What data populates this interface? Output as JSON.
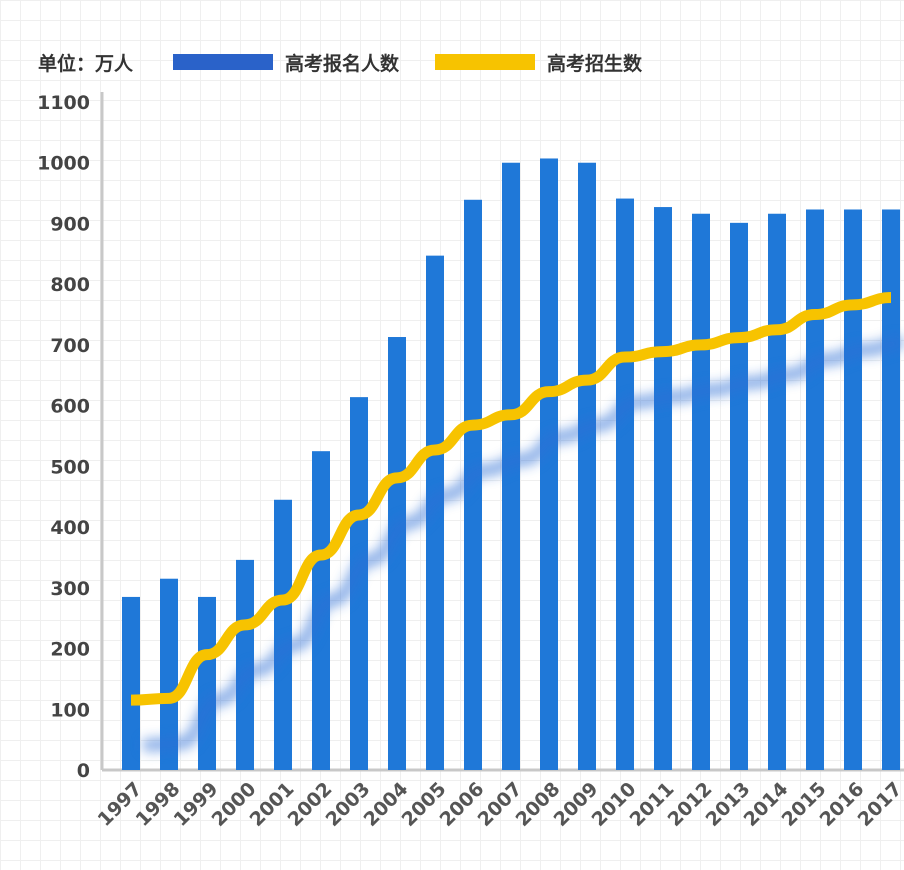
{
  "chart_data": {
    "type": "bar+line",
    "unit_label": "单位：万人",
    "categories": [
      "1997",
      "1998",
      "1999",
      "2000",
      "2001",
      "2002",
      "2003",
      "2004",
      "2005",
      "2006",
      "2007",
      "2008",
      "2009",
      "2010",
      "2011",
      "2012",
      "2013",
      "2014",
      "2015",
      "2016",
      "2017"
    ],
    "series": [
      {
        "name": "高考报名人数",
        "type": "bar",
        "color": "#1f78d8",
        "values": [
          285,
          315,
          285,
          346,
          445,
          525,
          614,
          713,
          847,
          939,
          1000,
          1007,
          1000,
          941,
          927,
          916,
          901,
          916,
          923,
          923,
          923
        ]
      },
      {
        "name": "高考招生数",
        "type": "line",
        "color": "#f7c300",
        "values": [
          115,
          118,
          190,
          239,
          280,
          354,
          420,
          481,
          527,
          568,
          585,
          623,
          642,
          680,
          689,
          700,
          712,
          725,
          750,
          766,
          778
        ]
      }
    ],
    "legend_colors": {
      "bar": "#2a62c9",
      "line": "#f7c300"
    },
    "yticks": [
      0,
      100,
      200,
      300,
      400,
      500,
      600,
      700,
      800,
      900,
      1000,
      1100
    ],
    "ylim": [
      0,
      1100
    ],
    "grid": true,
    "legend": "top"
  }
}
